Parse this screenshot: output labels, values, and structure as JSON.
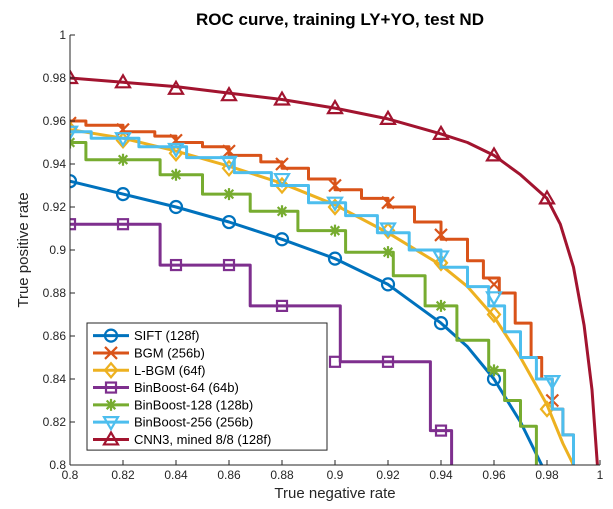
{
  "chart_data": {
    "type": "line",
    "title": "ROC curve, training LY+YO, test ND",
    "xlabel": "True negative rate",
    "ylabel": "True positive rate",
    "xlim": [
      0.8,
      1.0
    ],
    "ylim": [
      0.8,
      1.0
    ],
    "xticks": [
      "0.8",
      "0.82",
      "0.84",
      "0.86",
      "0.88",
      "0.9",
      "0.92",
      "0.94",
      "0.96",
      "0.98",
      "1"
    ],
    "yticks": [
      "0.8",
      "0.82",
      "0.84",
      "0.86",
      "0.88",
      "0.9",
      "0.92",
      "0.94",
      "0.96",
      "0.98",
      "1"
    ],
    "grid": false,
    "legend_position": "bottom-left",
    "series": [
      {
        "name": "SIFT (128f)",
        "color": "#0072BD",
        "marker": "circle",
        "step": false,
        "points": [
          [
            0.8,
            0.932
          ],
          [
            0.82,
            0.926
          ],
          [
            0.84,
            0.92
          ],
          [
            0.86,
            0.913
          ],
          [
            0.88,
            0.905
          ],
          [
            0.9,
            0.896
          ],
          [
            0.92,
            0.884
          ],
          [
            0.94,
            0.866
          ],
          [
            0.95,
            0.855
          ],
          [
            0.96,
            0.84
          ],
          [
            0.97,
            0.82
          ],
          [
            0.978,
            0.8
          ]
        ],
        "markers": [
          [
            0.8,
            0.932
          ],
          [
            0.82,
            0.926
          ],
          [
            0.84,
            0.92
          ],
          [
            0.86,
            0.913
          ],
          [
            0.88,
            0.905
          ],
          [
            0.9,
            0.896
          ],
          [
            0.92,
            0.884
          ],
          [
            0.94,
            0.866
          ],
          [
            0.96,
            0.84
          ]
        ]
      },
      {
        "name": "BGM (256b)",
        "color": "#D95319",
        "marker": "x",
        "step": true,
        "points": [
          [
            0.8,
            0.96
          ],
          [
            0.806,
            0.96
          ],
          [
            0.806,
            0.958
          ],
          [
            0.82,
            0.958
          ],
          [
            0.82,
            0.955
          ],
          [
            0.832,
            0.955
          ],
          [
            0.832,
            0.953
          ],
          [
            0.84,
            0.953
          ],
          [
            0.84,
            0.95
          ],
          [
            0.85,
            0.95
          ],
          [
            0.85,
            0.948
          ],
          [
            0.86,
            0.948
          ],
          [
            0.86,
            0.944
          ],
          [
            0.872,
            0.944
          ],
          [
            0.872,
            0.941
          ],
          [
            0.88,
            0.941
          ],
          [
            0.88,
            0.938
          ],
          [
            0.89,
            0.938
          ],
          [
            0.89,
            0.933
          ],
          [
            0.9,
            0.933
          ],
          [
            0.9,
            0.928
          ],
          [
            0.91,
            0.928
          ],
          [
            0.91,
            0.924
          ],
          [
            0.92,
            0.924
          ],
          [
            0.92,
            0.92
          ],
          [
            0.93,
            0.92
          ],
          [
            0.93,
            0.913
          ],
          [
            0.94,
            0.913
          ],
          [
            0.94,
            0.905
          ],
          [
            0.95,
            0.905
          ],
          [
            0.95,
            0.895
          ],
          [
            0.956,
            0.895
          ],
          [
            0.956,
            0.887
          ],
          [
            0.962,
            0.887
          ],
          [
            0.962,
            0.88
          ],
          [
            0.968,
            0.88
          ],
          [
            0.968,
            0.866
          ],
          [
            0.974,
            0.866
          ],
          [
            0.974,
            0.85
          ],
          [
            0.978,
            0.85
          ],
          [
            0.978,
            0.84
          ],
          [
            0.982,
            0.84
          ],
          [
            0.982,
            0.826
          ],
          [
            0.986,
            0.826
          ],
          [
            0.986,
            0.814
          ],
          [
            0.99,
            0.814
          ],
          [
            0.99,
            0.8
          ]
        ],
        "markers": [
          [
            0.8,
            0.959
          ],
          [
            0.82,
            0.956
          ],
          [
            0.84,
            0.951
          ],
          [
            0.86,
            0.946
          ],
          [
            0.88,
            0.94
          ],
          [
            0.9,
            0.93
          ],
          [
            0.92,
            0.922
          ],
          [
            0.94,
            0.907
          ],
          [
            0.96,
            0.884
          ],
          [
            0.982,
            0.83
          ]
        ]
      },
      {
        "name": "L-BGM (64f)",
        "color": "#EDB120",
        "marker": "diamond",
        "step": false,
        "points": [
          [
            0.8,
            0.956
          ],
          [
            0.82,
            0.952
          ],
          [
            0.84,
            0.946
          ],
          [
            0.86,
            0.939
          ],
          [
            0.88,
            0.931
          ],
          [
            0.9,
            0.921
          ],
          [
            0.92,
            0.908
          ],
          [
            0.94,
            0.893
          ],
          [
            0.95,
            0.883
          ],
          [
            0.96,
            0.869
          ],
          [
            0.97,
            0.85
          ],
          [
            0.98,
            0.828
          ],
          [
            0.986,
            0.81
          ],
          [
            0.99,
            0.8
          ]
        ],
        "markers": [
          [
            0.8,
            0.956
          ],
          [
            0.82,
            0.951
          ],
          [
            0.84,
            0.945
          ],
          [
            0.86,
            0.938
          ],
          [
            0.88,
            0.93
          ],
          [
            0.9,
            0.92
          ],
          [
            0.92,
            0.909
          ],
          [
            0.94,
            0.894
          ],
          [
            0.96,
            0.87
          ],
          [
            0.98,
            0.826
          ]
        ]
      },
      {
        "name": "BinBoost-64 (64b)",
        "color": "#7E2F8E",
        "marker": "square",
        "step": true,
        "points": [
          [
            0.8,
            0.912
          ],
          [
            0.834,
            0.912
          ],
          [
            0.834,
            0.893
          ],
          [
            0.868,
            0.893
          ],
          [
            0.868,
            0.874
          ],
          [
            0.902,
            0.874
          ],
          [
            0.902,
            0.848
          ],
          [
            0.936,
            0.848
          ],
          [
            0.936,
            0.816
          ],
          [
            0.944,
            0.816
          ],
          [
            0.944,
            0.8
          ]
        ],
        "markers": [
          [
            0.8,
            0.912
          ],
          [
            0.82,
            0.912
          ],
          [
            0.84,
            0.893
          ],
          [
            0.86,
            0.893
          ],
          [
            0.88,
            0.874
          ],
          [
            0.9,
            0.848
          ],
          [
            0.92,
            0.848
          ],
          [
            0.94,
            0.816
          ]
        ]
      },
      {
        "name": "BinBoost-128 (128b)",
        "color": "#77AC30",
        "marker": "asterisk",
        "step": true,
        "points": [
          [
            0.8,
            0.95
          ],
          [
            0.806,
            0.95
          ],
          [
            0.806,
            0.942
          ],
          [
            0.834,
            0.942
          ],
          [
            0.834,
            0.935
          ],
          [
            0.85,
            0.935
          ],
          [
            0.85,
            0.926
          ],
          [
            0.868,
            0.926
          ],
          [
            0.868,
            0.918
          ],
          [
            0.886,
            0.918
          ],
          [
            0.886,
            0.909
          ],
          [
            0.904,
            0.909
          ],
          [
            0.904,
            0.899
          ],
          [
            0.922,
            0.899
          ],
          [
            0.922,
            0.888
          ],
          [
            0.934,
            0.888
          ],
          [
            0.934,
            0.874
          ],
          [
            0.946,
            0.874
          ],
          [
            0.946,
            0.858
          ],
          [
            0.958,
            0.858
          ],
          [
            0.958,
            0.844
          ],
          [
            0.964,
            0.844
          ],
          [
            0.964,
            0.83
          ],
          [
            0.97,
            0.83
          ],
          [
            0.97,
            0.818
          ],
          [
            0.976,
            0.818
          ],
          [
            0.976,
            0.8
          ]
        ],
        "markers": [
          [
            0.8,
            0.95
          ],
          [
            0.82,
            0.942
          ],
          [
            0.84,
            0.935
          ],
          [
            0.86,
            0.926
          ],
          [
            0.88,
            0.918
          ],
          [
            0.9,
            0.909
          ],
          [
            0.92,
            0.899
          ],
          [
            0.94,
            0.874
          ],
          [
            0.96,
            0.844
          ]
        ]
      },
      {
        "name": "BinBoost-256 (256b)",
        "color": "#4DBEEE",
        "marker": "triangle-down",
        "step": true,
        "points": [
          [
            0.8,
            0.955
          ],
          [
            0.808,
            0.955
          ],
          [
            0.808,
            0.952
          ],
          [
            0.826,
            0.952
          ],
          [
            0.826,
            0.948
          ],
          [
            0.844,
            0.948
          ],
          [
            0.844,
            0.943
          ],
          [
            0.862,
            0.943
          ],
          [
            0.862,
            0.936
          ],
          [
            0.876,
            0.936
          ],
          [
            0.876,
            0.93
          ],
          [
            0.89,
            0.93
          ],
          [
            0.89,
            0.922
          ],
          [
            0.904,
            0.922
          ],
          [
            0.904,
            0.916
          ],
          [
            0.916,
            0.916
          ],
          [
            0.916,
            0.908
          ],
          [
            0.928,
            0.908
          ],
          [
            0.928,
            0.9
          ],
          [
            0.94,
            0.9
          ],
          [
            0.94,
            0.892
          ],
          [
            0.95,
            0.892
          ],
          [
            0.95,
            0.883
          ],
          [
            0.958,
            0.883
          ],
          [
            0.958,
            0.874
          ],
          [
            0.964,
            0.874
          ],
          [
            0.964,
            0.862
          ],
          [
            0.97,
            0.862
          ],
          [
            0.97,
            0.85
          ],
          [
            0.976,
            0.85
          ],
          [
            0.976,
            0.84
          ],
          [
            0.982,
            0.84
          ],
          [
            0.982,
            0.826
          ],
          [
            0.986,
            0.826
          ],
          [
            0.986,
            0.814
          ],
          [
            0.99,
            0.814
          ],
          [
            0.99,
            0.8
          ]
        ],
        "markers": [
          [
            0.8,
            0.955
          ],
          [
            0.82,
            0.952
          ],
          [
            0.84,
            0.947
          ],
          [
            0.86,
            0.941
          ],
          [
            0.88,
            0.933
          ],
          [
            0.9,
            0.922
          ],
          [
            0.92,
            0.91
          ],
          [
            0.94,
            0.897
          ],
          [
            0.96,
            0.878
          ],
          [
            0.982,
            0.839
          ]
        ]
      },
      {
        "name": "CNN3, mined 8/8 (128f)",
        "color": "#A2142F",
        "marker": "triangle",
        "step": false,
        "points": [
          [
            0.8,
            0.98
          ],
          [
            0.82,
            0.978
          ],
          [
            0.84,
            0.976
          ],
          [
            0.86,
            0.973
          ],
          [
            0.88,
            0.97
          ],
          [
            0.9,
            0.966
          ],
          [
            0.92,
            0.961
          ],
          [
            0.94,
            0.954
          ],
          [
            0.95,
            0.95
          ],
          [
            0.96,
            0.944
          ],
          [
            0.97,
            0.935
          ],
          [
            0.98,
            0.924
          ],
          [
            0.985,
            0.912
          ],
          [
            0.99,
            0.892
          ],
          [
            0.994,
            0.865
          ],
          [
            0.997,
            0.835
          ],
          [
            0.999,
            0.8
          ]
        ],
        "markers": [
          [
            0.8,
            0.98
          ],
          [
            0.82,
            0.978
          ],
          [
            0.84,
            0.975
          ],
          [
            0.86,
            0.972
          ],
          [
            0.88,
            0.97
          ],
          [
            0.9,
            0.966
          ],
          [
            0.92,
            0.961
          ],
          [
            0.94,
            0.954
          ],
          [
            0.96,
            0.944
          ],
          [
            0.98,
            0.924
          ]
        ]
      }
    ]
  }
}
